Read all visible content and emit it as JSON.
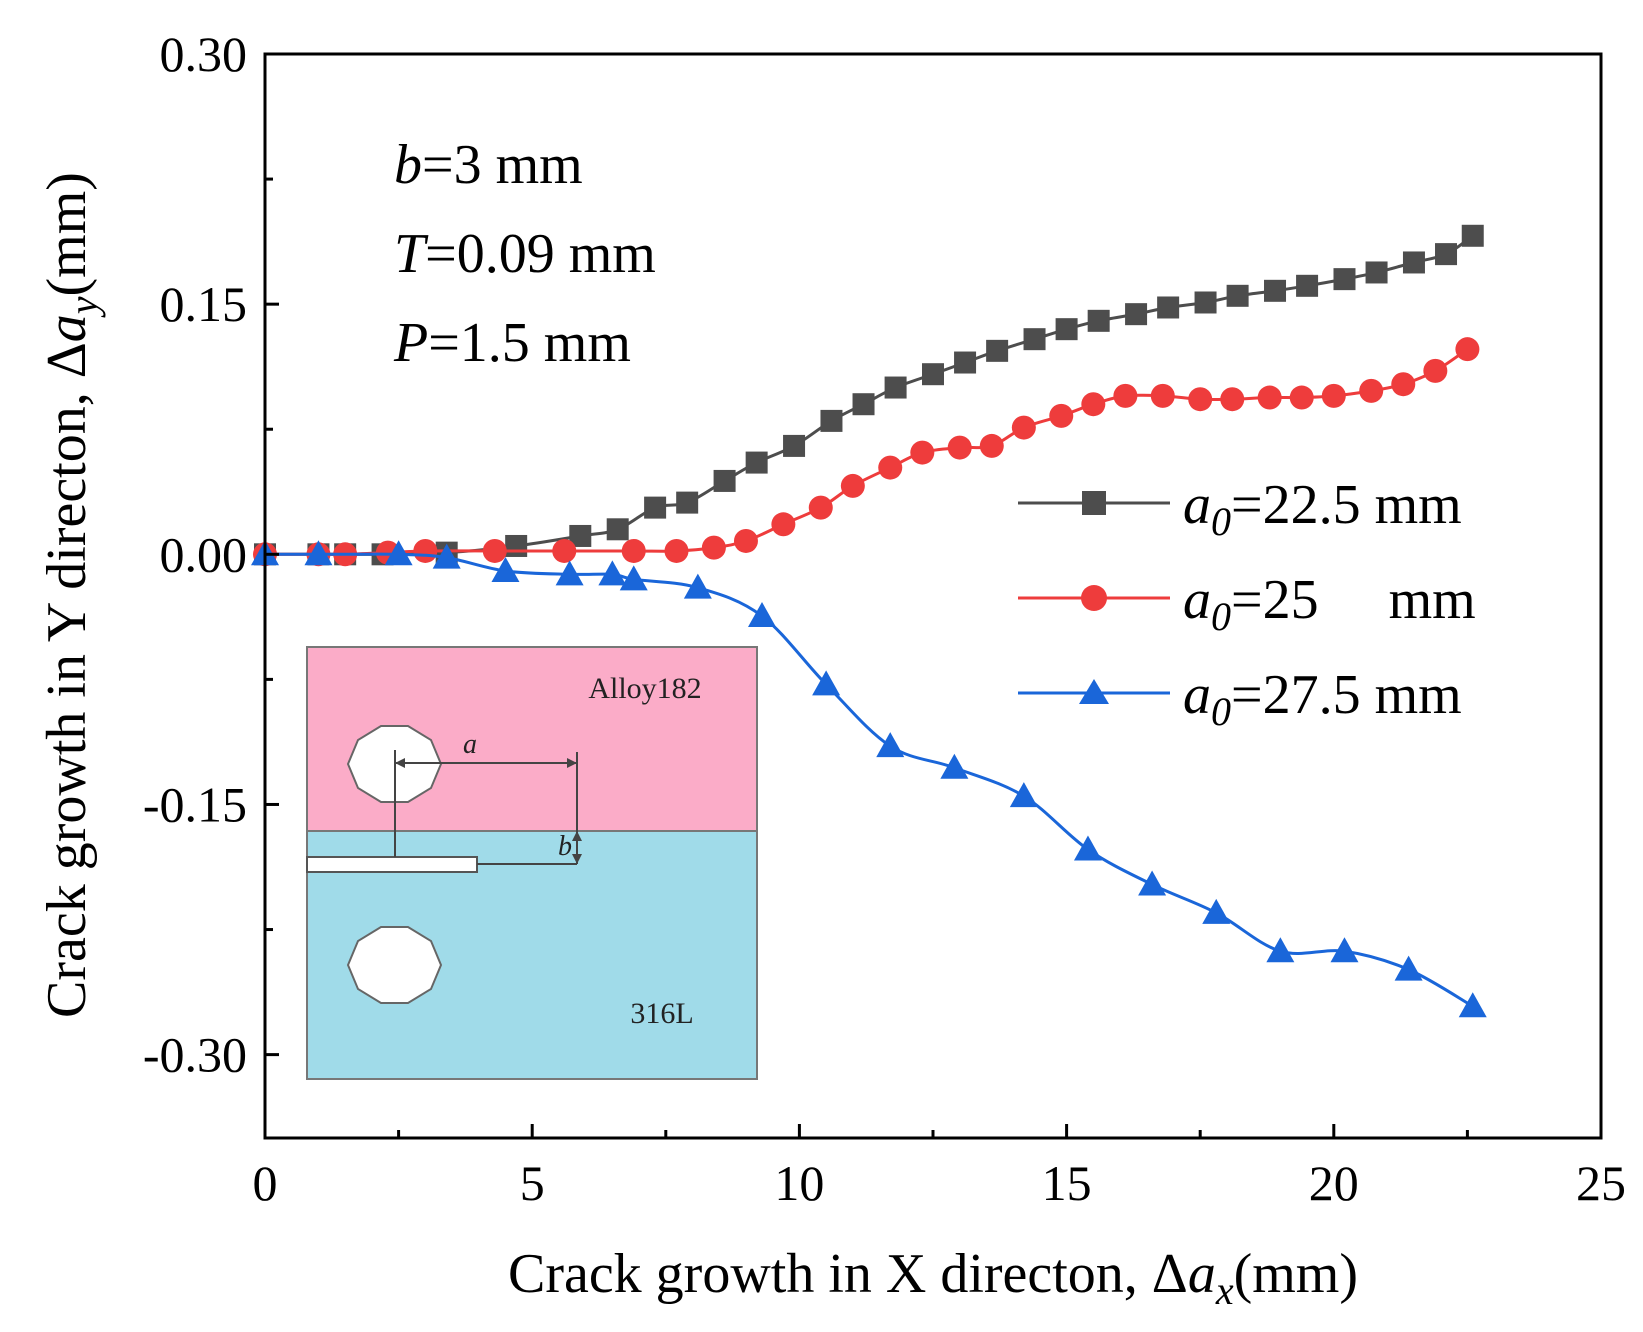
{
  "chart_data": {
    "type": "line",
    "xlabel": {
      "prefix": "Crack growth in X directon, Δ",
      "var": "a",
      "sub": "x",
      "suffix": "(mm)"
    },
    "ylabel": {
      "prefix": "Crack growth in Y directon, Δ",
      "var": "a",
      "sub": "y",
      "suffix": "(mm)"
    },
    "xlim": [
      0,
      25
    ],
    "ylim": [
      -0.35,
      0.3
    ],
    "xticks": [
      0,
      5,
      10,
      15,
      20,
      25
    ],
    "xtick_labels": [
      "0",
      "5",
      "10",
      "15",
      "20",
      "25"
    ],
    "yticks": [
      -0.3,
      -0.15,
      0.0,
      0.15,
      0.3
    ],
    "ytick_labels": [
      "-0.30",
      "-0.15",
      "0.00",
      "0.15",
      "0.30"
    ],
    "grid": false,
    "legend_position": "right",
    "annotations": [
      {
        "var": "b",
        "text": "=3 mm"
      },
      {
        "var": "T",
        "text": "=0.09 mm"
      },
      {
        "var": "P",
        "text": "=1.5 mm"
      }
    ],
    "series": [
      {
        "name": "a0=22.5 mm",
        "legend_var": "a",
        "legend_sub": "0",
        "legend_value": "=22.5 mm",
        "color": "#4d4d4d",
        "marker": "square",
        "x": [
          0,
          1.0,
          1.5,
          2.2,
          3.4,
          4.7,
          5.9,
          6.6,
          7.3,
          7.9,
          8.6,
          9.2,
          9.9,
          10.6,
          11.2,
          11.8,
          12.5,
          13.1,
          13.7,
          14.4,
          15.0,
          15.6,
          16.3,
          16.9,
          17.6,
          18.2,
          18.9,
          19.5,
          20.2,
          20.8,
          21.5,
          22.1,
          22.6
        ],
        "y": [
          0,
          0,
          0,
          0,
          0.001,
          0.005,
          0.011,
          0.015,
          0.028,
          0.031,
          0.044,
          0.055,
          0.065,
          0.08,
          0.09,
          0.1,
          0.108,
          0.115,
          0.122,
          0.129,
          0.135,
          0.14,
          0.144,
          0.148,
          0.151,
          0.155,
          0.158,
          0.161,
          0.165,
          0.169,
          0.175,
          0.18,
          0.191
        ]
      },
      {
        "name": "a0=25 mm",
        "legend_var": "a",
        "legend_sub": "0",
        "legend_value": "=25  mm",
        "color": "#ee3c3c",
        "marker": "circle",
        "x": [
          0,
          1.0,
          1.5,
          2.3,
          3.0,
          4.3,
          5.6,
          6.9,
          7.7,
          8.4,
          9.0,
          9.7,
          10.4,
          11.0,
          11.7,
          12.3,
          13.0,
          13.6,
          14.2,
          14.9,
          15.5,
          16.1,
          16.8,
          17.5,
          18.1,
          18.8,
          19.4,
          20.0,
          20.7,
          21.3,
          21.9,
          22.5
        ],
        "y": [
          0,
          0,
          0,
          0.001,
          0.002,
          0.002,
          0.002,
          0.002,
          0.002,
          0.004,
          0.008,
          0.018,
          0.028,
          0.041,
          0.052,
          0.061,
          0.064,
          0.065,
          0.076,
          0.083,
          0.09,
          0.095,
          0.095,
          0.093,
          0.093,
          0.094,
          0.094,
          0.095,
          0.098,
          0.102,
          0.11,
          0.123
        ]
      },
      {
        "name": "a0=27.5 mm",
        "legend_var": "a",
        "legend_sub": "0",
        "legend_value": "=27.5 mm",
        "color": "#1a66d9",
        "marker": "triangle",
        "x": [
          0,
          1.0,
          2.5,
          3.4,
          4.5,
          5.7,
          6.5,
          6.9,
          8.1,
          9.3,
          10.5,
          11.7,
          12.9,
          14.2,
          15.4,
          16.6,
          17.8,
          19.0,
          20.2,
          21.4,
          22.6
        ],
        "y": [
          0,
          0,
          0,
          -0.002,
          -0.01,
          -0.012,
          -0.012,
          -0.015,
          -0.02,
          -0.037,
          -0.078,
          -0.115,
          -0.128,
          -0.145,
          -0.177,
          -0.198,
          -0.215,
          -0.238,
          -0.238,
          -0.249,
          -0.271
        ]
      }
    ],
    "inset": {
      "top_label": "Alloy182",
      "bottom_label": "316L",
      "dim_a": "a",
      "dim_b": "b",
      "top_color": "#fbacc8",
      "bottom_color": "#a0dbe9"
    }
  }
}
